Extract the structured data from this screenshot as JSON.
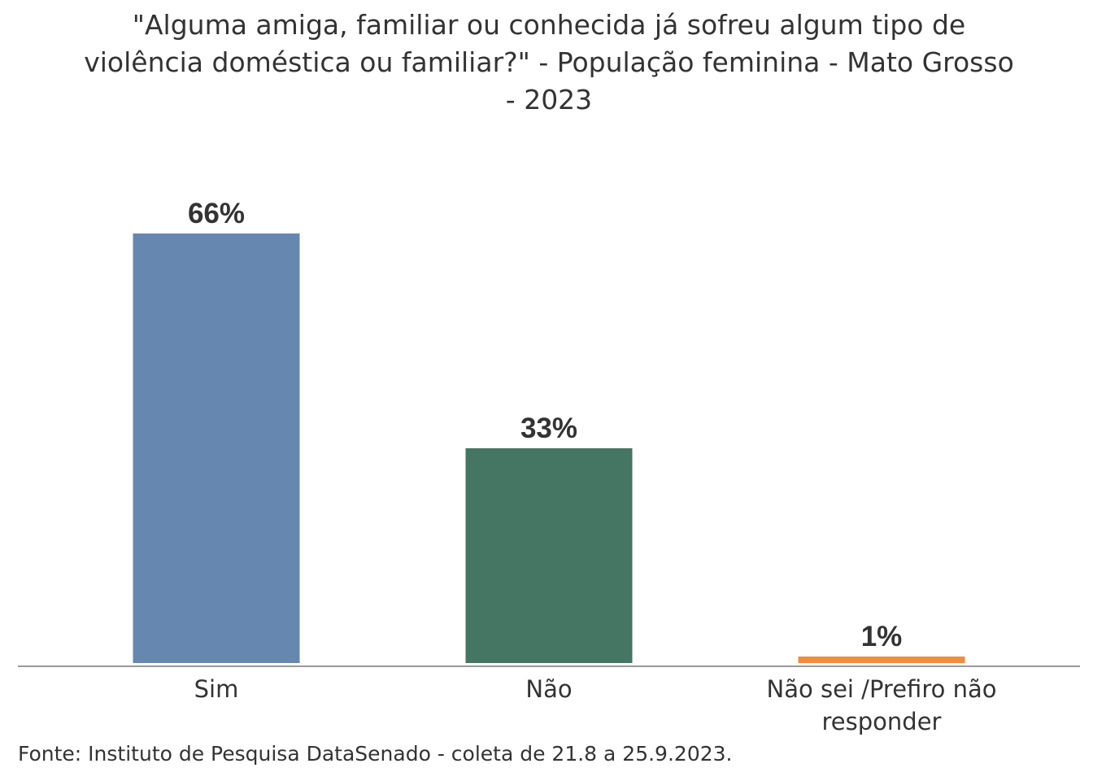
{
  "chart_data": {
    "type": "bar",
    "title": "\"Alguma amiga, familiar ou conhecida já sofreu algum tipo de violência doméstica ou familiar?\" - População feminina - Mato Grosso - 2023",
    "categories": [
      "Sim",
      "Não",
      "Não sei /Prefiro não responder"
    ],
    "category_lines": [
      [
        "Sim"
      ],
      [
        "Não"
      ],
      [
        "Não sei /Prefiro não",
        "responder"
      ]
    ],
    "values": [
      66,
      33,
      1
    ],
    "data_labels": [
      "66%",
      "33%",
      "1%"
    ],
    "colors": [
      "#6688B0",
      "#457563",
      "#F28C3A"
    ],
    "xlabel": "",
    "ylabel": "",
    "ylim": [
      0,
      66
    ],
    "grid": false,
    "legend": "none"
  },
  "source": "Fonte: Instituto de Pesquisa DataSenado - coleta de 21.8 a 25.9.2023."
}
